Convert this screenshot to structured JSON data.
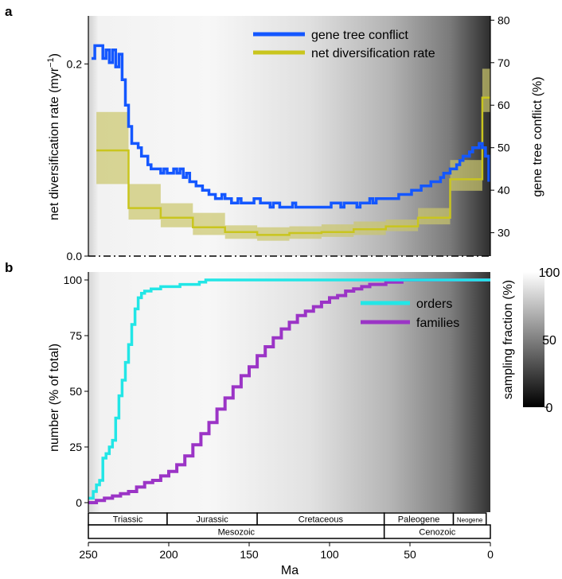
{
  "panel_labels": {
    "a": "a",
    "b": "b"
  },
  "colors": {
    "gene_tree_conflict": "#1457ff",
    "net_diversification": "#c9c51e",
    "net_diversification_band": "#cbc66b",
    "orders": "#22e6e6",
    "families": "#9b34c6"
  },
  "chart_data": [
    {
      "type": "line",
      "panel": "a",
      "xlabel": "",
      "ylabel": "net diversification rate (myr⁻¹)",
      "ylabel_parts": {
        "main": "net diversification rate (myr",
        "sup": "−1",
        "close": ")"
      },
      "y2label": "gene tree conflict (%)",
      "xlim": [
        250,
        0
      ],
      "ylim": [
        0,
        0.25
      ],
      "y2lim": [
        24.5,
        81
      ],
      "yticks": [
        0,
        0.2
      ],
      "ytick_labels": [
        "0.0",
        "0.2"
      ],
      "y2ticks": [
        30,
        40,
        50,
        60,
        70,
        80
      ],
      "y2tick_labels": [
        "30",
        "40",
        "50",
        "60",
        "70",
        "80"
      ],
      "background": "sampling fraction grayscale gradient",
      "legend": {
        "position": "top-right",
        "entries": [
          "gene tree conflict",
          "net diversification rate"
        ]
      },
      "series": [
        {
          "name": "gene tree conflict",
          "axis": "right",
          "style": "step",
          "x": [
            248,
            246,
            243,
            241,
            239,
            237,
            235,
            233,
            231,
            229,
            227,
            225,
            223,
            221,
            219,
            217,
            215,
            213,
            211,
            209,
            207,
            205,
            203,
            201,
            199,
            197,
            195,
            193,
            191,
            189,
            187,
            185,
            183,
            181,
            179,
            177,
            175,
            173,
            171,
            169,
            167,
            165,
            163,
            161,
            159,
            157,
            155,
            153,
            151,
            149,
            147,
            145,
            143,
            141,
            139,
            137,
            135,
            133,
            131,
            129,
            127,
            125,
            123,
            121,
            119,
            117,
            115,
            113,
            111,
            109,
            107,
            105,
            103,
            101,
            99,
            97,
            95,
            93,
            91,
            89,
            87,
            85,
            83,
            81,
            79,
            77,
            75,
            73,
            71,
            69,
            67,
            65,
            63,
            61,
            59,
            57,
            55,
            53,
            51,
            49,
            47,
            45,
            43,
            41,
            39,
            37,
            35,
            33,
            31,
            29,
            27,
            25,
            23,
            21,
            19,
            17,
            15,
            13,
            11,
            9,
            7,
            5,
            3,
            1
          ],
          "values": [
            71,
            74,
            74,
            71,
            73,
            70,
            73,
            69,
            72,
            66,
            60,
            55,
            51,
            51,
            50,
            48,
            48,
            46,
            45,
            45,
            45,
            44,
            45,
            44,
            44,
            45,
            44,
            45,
            43,
            44,
            42,
            42,
            41,
            41,
            40,
            40,
            39,
            39,
            38,
            38,
            39,
            38,
            38,
            37,
            37,
            38,
            37,
            37,
            37,
            37,
            38,
            38,
            37,
            37,
            37,
            36,
            37,
            37,
            36,
            36,
            36,
            36,
            37,
            36,
            36,
            36,
            36,
            36,
            36,
            36,
            36,
            36,
            36,
            36,
            37,
            37,
            37,
            36,
            37,
            37,
            37,
            37,
            36,
            37,
            37,
            37,
            38,
            37,
            38,
            38,
            38,
            38,
            38,
            38,
            38,
            39,
            39,
            39,
            39,
            40,
            40,
            40,
            41,
            41,
            41,
            42,
            42,
            42,
            43,
            44,
            44,
            45,
            45,
            46,
            47,
            48,
            48,
            49,
            50,
            50,
            51,
            50,
            48,
            42
          ]
        },
        {
          "name": "net diversification rate",
          "axis": "left",
          "style": "step",
          "x": [
            245,
            225,
            205,
            185,
            165,
            145,
            125,
            105,
            85,
            65,
            45,
            25,
            5
          ],
          "values": [
            0.11,
            0.05,
            0.04,
            0.03,
            0.025,
            0.022,
            0.024,
            0.025,
            0.028,
            0.031,
            0.04,
            0.08,
            0.165
          ],
          "band_lower": [
            0.075,
            0.038,
            0.03,
            0.022,
            0.018,
            0.016,
            0.018,
            0.02,
            0.022,
            0.026,
            0.033,
            0.068,
            0.15
          ],
          "band_upper": [
            0.15,
            0.075,
            0.055,
            0.045,
            0.032,
            0.03,
            0.031,
            0.033,
            0.036,
            0.038,
            0.05,
            0.1,
            0.195
          ]
        }
      ]
    },
    {
      "type": "line",
      "panel": "b",
      "xlabel": "Ma",
      "ylabel": "number (% of total)",
      "xlim": [
        250,
        0
      ],
      "ylim": [
        0,
        100
      ],
      "xticks": [
        250,
        200,
        150,
        100,
        50,
        0
      ],
      "xtick_labels": [
        "250",
        "200",
        "150",
        "100",
        "50",
        "0"
      ],
      "yticks": [
        0,
        25,
        50,
        75,
        100
      ],
      "ytick_labels": [
        "0",
        "25",
        "50",
        "75",
        "100"
      ],
      "legend": {
        "position": "top-right",
        "entries": [
          "orders",
          "families"
        ]
      },
      "series": [
        {
          "name": "orders",
          "style": "step",
          "x": [
            250,
            247,
            245,
            243,
            241,
            239,
            237,
            235,
            233,
            231,
            229,
            227,
            225,
            223,
            221,
            219,
            217,
            215,
            213,
            211,
            209,
            207,
            205,
            203,
            201,
            199,
            197,
            195,
            193,
            191,
            189,
            187,
            185,
            183,
            181,
            179,
            177,
            0
          ],
          "values": [
            2,
            5,
            8,
            10,
            20,
            22,
            25,
            28,
            38,
            48,
            55,
            63,
            71,
            80,
            87,
            92,
            94,
            95,
            95,
            96,
            96,
            96,
            97,
            97,
            97,
            97,
            97,
            97,
            98,
            98,
            98,
            98,
            98,
            98,
            99,
            99,
            100,
            100
          ]
        },
        {
          "name": "families",
          "style": "step",
          "x": [
            250,
            245,
            240,
            235,
            230,
            225,
            220,
            215,
            210,
            205,
            200,
            195,
            190,
            185,
            180,
            175,
            170,
            165,
            160,
            155,
            150,
            145,
            140,
            135,
            130,
            125,
            120,
            115,
            110,
            105,
            100,
            95,
            90,
            85,
            80,
            75,
            70,
            65,
            60,
            55,
            50,
            45,
            40,
            0
          ],
          "values": [
            0,
            1,
            2,
            3,
            4,
            5,
            7,
            9,
            10,
            12,
            14,
            17,
            21,
            26,
            31,
            36,
            42,
            47,
            52,
            57,
            61,
            66,
            70,
            74,
            78,
            81,
            84,
            86,
            88,
            90,
            92,
            93,
            95,
            96,
            97,
            98,
            98,
            99,
            99,
            100,
            100,
            100,
            100,
            100
          ]
        }
      ]
    }
  ],
  "colorbar": {
    "label": "sampling fraction (%)",
    "ticks": [
      100,
      50,
      0
    ],
    "tick_labels": [
      "100",
      "50",
      "0"
    ],
    "scale": "black (0) to white (100)"
  },
  "timescale": {
    "periods": [
      {
        "name": "Triassic",
        "start": 252,
        "end": 201
      },
      {
        "name": "Jurassic",
        "start": 201,
        "end": 145
      },
      {
        "name": "Cretaceous",
        "start": 145,
        "end": 66
      },
      {
        "name": "Paleogene",
        "start": 66,
        "end": 23
      },
      {
        "name": "Neogene",
        "start": 23,
        "end": 2.6
      }
    ],
    "eras": [
      {
        "name": "Mesozoic",
        "start": 252,
        "end": 66
      },
      {
        "name": "Cenozoic",
        "start": 66,
        "end": 0
      }
    ]
  }
}
